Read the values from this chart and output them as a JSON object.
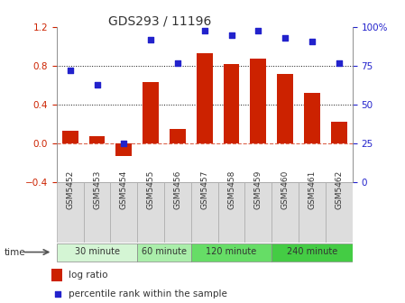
{
  "title": "GDS293 / 11196",
  "samples": [
    "GSM5452",
    "GSM5453",
    "GSM5454",
    "GSM5455",
    "GSM5456",
    "GSM5457",
    "GSM5458",
    "GSM5459",
    "GSM5460",
    "GSM5461",
    "GSM5462"
  ],
  "log_ratio": [
    0.13,
    0.07,
    -0.13,
    0.63,
    0.15,
    0.93,
    0.82,
    0.88,
    0.72,
    0.52,
    0.22
  ],
  "percentile": [
    72,
    63,
    25,
    92,
    77,
    98,
    95,
    98,
    93,
    91,
    77
  ],
  "bar_color": "#cc2200",
  "dot_color": "#2222cc",
  "ylim_left": [
    -0.4,
    1.2
  ],
  "ylim_right": [
    0,
    100
  ],
  "yticks_left": [
    -0.4,
    0.0,
    0.4,
    0.8,
    1.2
  ],
  "yticks_right": [
    0,
    25,
    50,
    75,
    100
  ],
  "ytick_labels_right": [
    "0",
    "25",
    "50",
    "75",
    "100%"
  ],
  "hlines_dotted": [
    0.4,
    0.8
  ],
  "zero_line_color": "#cc2200",
  "dotted_line_color": "#111111",
  "groups": [
    {
      "label": "30 minute",
      "start": 0,
      "end": 2,
      "color": "#d4f5d4"
    },
    {
      "label": "60 minute",
      "start": 3,
      "end": 4,
      "color": "#aaeeaa"
    },
    {
      "label": "120 minute",
      "start": 5,
      "end": 7,
      "color": "#66dd66"
    },
    {
      "label": "240 minute",
      "start": 8,
      "end": 10,
      "color": "#44cc44"
    }
  ],
  "legend_bar_label": "log ratio",
  "legend_dot_label": "percentile rank within the sample",
  "bg_color": "#ffffff",
  "bar_width": 0.6,
  "tick_bg_color": "#dddddd"
}
